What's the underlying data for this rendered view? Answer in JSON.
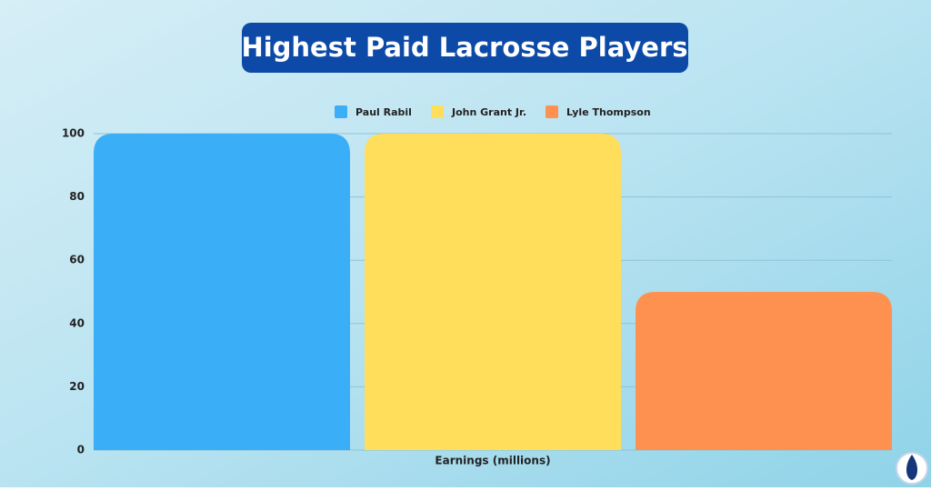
{
  "chart_data": {
    "type": "bar",
    "title": "Highest Paid Lacrosse Players",
    "x_label": "Earnings (millions)",
    "categories": [
      null
    ],
    "series": [
      {
        "name": "Paul Rabil",
        "color": "#3aaef6",
        "values": [
          100
        ]
      },
      {
        "name": "John Grant Jr.",
        "color": "#fede5a",
        "values": [
          100
        ]
      },
      {
        "name": "Lyle Thompson",
        "color": "#fe914f",
        "values": [
          50
        ]
      }
    ],
    "ylim": [
      0,
      100
    ],
    "yticks": [
      0,
      20,
      40,
      60,
      80,
      100
    ],
    "grid": true,
    "legend": "top"
  }
}
